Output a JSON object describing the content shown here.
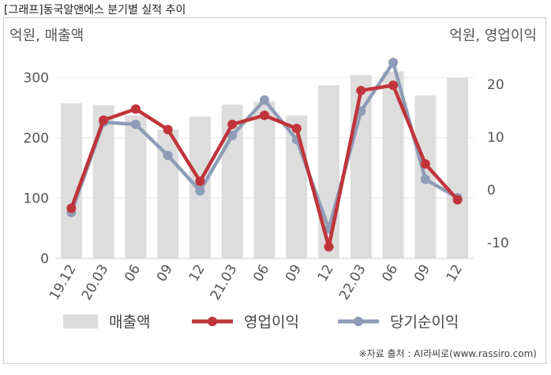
{
  "header": {
    "title": "[그래프]동국알앤에스 분기별 실적 추이"
  },
  "footer": {
    "source": "※자료 출처 : AI라씨로(www.rassiro.com)"
  },
  "colors": {
    "revenue": "#dddddd",
    "operating_profit": "#c0343a",
    "net_income": "#8f9cb8",
    "axis_text": "#555555",
    "grid": "#e9e9e9"
  },
  "chart_data": {
    "type": "bar",
    "categories": [
      "19.12",
      "20.03",
      "06",
      "09",
      "12",
      "21.03",
      "06",
      "09",
      "12",
      "22.03",
      "06",
      "09",
      "12"
    ],
    "y_left_label": "억원, 매출액",
    "y_right_label": "억원, 영업이익",
    "y_left_ticks": [
      0,
      100,
      200,
      300
    ],
    "y_right_ticks": [
      -10,
      0,
      10,
      20
    ],
    "y_left_range": [
      0,
      350
    ],
    "y_right_range": [
      -13,
      27
    ],
    "grid": true,
    "legend_position": "bottom",
    "series": [
      {
        "name": "매출액",
        "type": "bar",
        "axis": "left",
        "values": [
          257,
          254,
          237,
          213,
          235,
          255,
          260,
          237,
          287,
          304,
          310,
          270,
          299
        ]
      },
      {
        "name": "영업이익",
        "type": "line",
        "axis": "right",
        "values": [
          -3.5,
          13.2,
          15.3,
          11.4,
          1.6,
          12.4,
          14.1,
          11.6,
          -10.8,
          18.8,
          19.8,
          4.9,
          -1.9
        ]
      },
      {
        "name": "당기순이익",
        "type": "line",
        "axis": "right",
        "values": [
          -4.3,
          12.8,
          12.4,
          6.5,
          -0.2,
          10.3,
          17.0,
          9.5,
          -7.4,
          14.9,
          24.1,
          2.0,
          -1.5
        ]
      }
    ]
  }
}
